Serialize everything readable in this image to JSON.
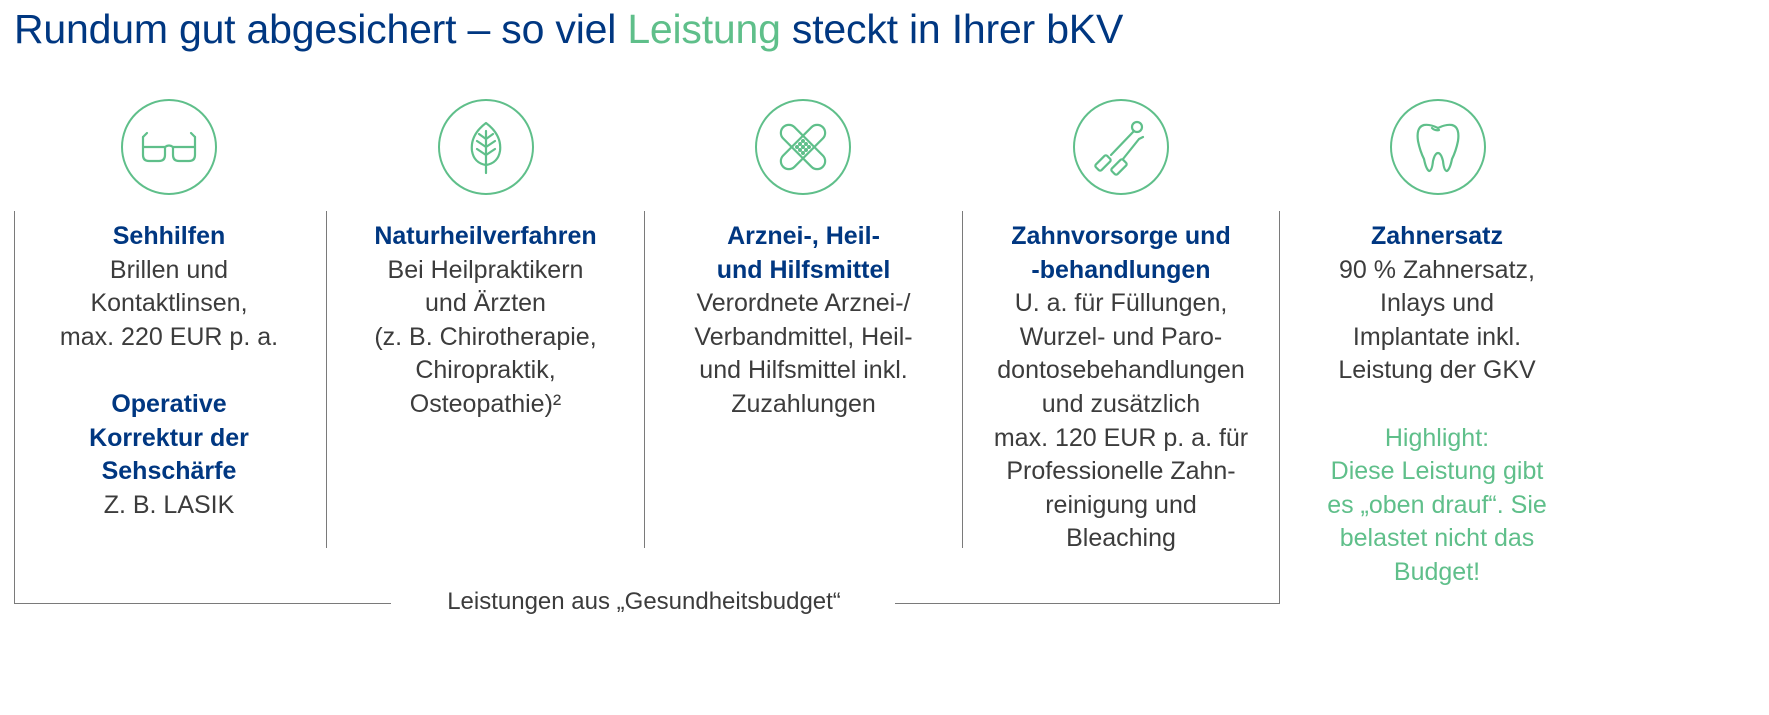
{
  "title": {
    "part1": "Rundum gut abgesichert – so viel ",
    "highlight": "Leistung",
    "part2": " steckt in Ihrer bKV"
  },
  "colors": {
    "blue": "#003781",
    "green": "#5fbf8a",
    "text": "#3c3c3c"
  },
  "columns": [
    {
      "icon": "glasses-icon",
      "heading1": "Sehhilfen",
      "lines1": [
        "Brillen und",
        "Kontaktlinsen,",
        "max. 220 EUR p. a."
      ],
      "heading2": [
        "Operative",
        "Korrektur der",
        "Sehschärfe"
      ],
      "lines2": [
        "Z. B. LASIK"
      ]
    },
    {
      "icon": "leaf-icon",
      "heading1": "Naturheilverfahren",
      "lines1": [
        "Bei Heilpraktikern",
        "und Ärzten",
        "(z. B. Chirotherapie,",
        "Chiropraktik,",
        "Osteopathie)²"
      ]
    },
    {
      "icon": "bandage-icon",
      "heading1": [
        "Arznei-, Heil-",
        "und Hilfsmittel"
      ],
      "lines1": [
        "Verordnete Arznei-/",
        "Verbandmittel, Heil-",
        "und Hilfsmittel inkl.",
        "Zuzahlungen"
      ]
    },
    {
      "icon": "dental-tools-icon",
      "heading1": [
        "Zahnvorsorge und",
        "-behandlungen"
      ],
      "lines1": [
        "U. a. für Füllungen,",
        "Wurzel- und Paro-",
        "dontosebehandlungen",
        "und zusätzlich",
        "max. 120 EUR p. a. für",
        "Professionelle Zahn-",
        "reinigung und",
        "Bleaching"
      ]
    },
    {
      "icon": "tooth-icon",
      "heading1": "Zahnersatz",
      "lines1": [
        "90 % Zahnersatz,",
        "Inlays und",
        "Implantate inkl.",
        "Leistung der GKV"
      ],
      "highlight": [
        "Highlight:",
        "Diese Leistung gibt",
        "es „oben drauf“. Sie",
        "belastet nicht das",
        "Budget!"
      ]
    }
  ],
  "budget_label": "Leistungen aus „Gesundheitsbudget“"
}
